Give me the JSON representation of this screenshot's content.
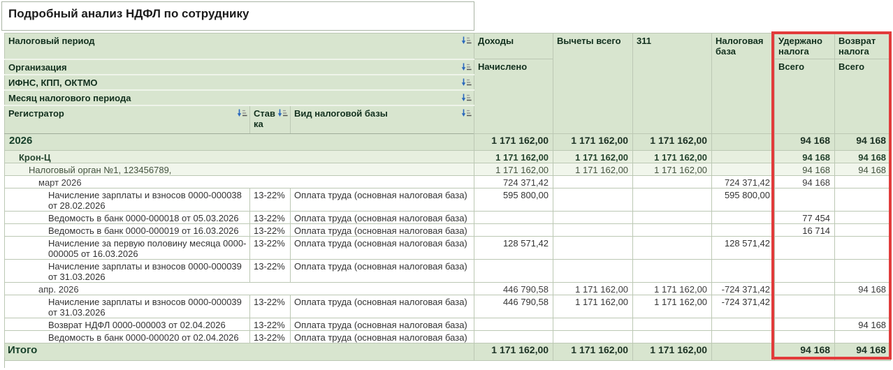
{
  "title": "Подробный анализ НДФЛ по сотруднику",
  "header": {
    "tax_period": "Налоговый период",
    "organization": "Организация",
    "ifns": "ИФНС, КПП, ОКТМО",
    "month": "Месяц налогового периода",
    "registrator": "Регистратор",
    "rate": "Ставка",
    "tax_base_kind": "Вид налоговой базы",
    "income": "Доходы",
    "income_sub": "Начислено",
    "deductions": "Вычеты всего",
    "code311": "311",
    "tax_base": "Налоговая база",
    "withheld": "Удержано налога",
    "withheld_sub": "Всего",
    "refund": "Возврат налога",
    "refund_sub": "Всего"
  },
  "colors": {
    "header_green": "#d8e5cf",
    "group_green": "#e7efdf",
    "subgroup_green": "#f1f6ec",
    "highlight_red": "#e23b3b",
    "negative_red": "#cc0000",
    "sort_icon_blue": "#2a68bd"
  },
  "rows": [
    {
      "type": "year",
      "label": "2026",
      "rate": "",
      "base_kind": "",
      "values": [
        "1 171 162,00",
        "1 171 162,00",
        "1 171 162,00",
        "",
        "94 168",
        "94 168"
      ]
    },
    {
      "type": "org",
      "label": "Крон-Ц",
      "rate": "",
      "base_kind": "",
      "values": [
        "1 171 162,00",
        "1 171 162,00",
        "1 171 162,00",
        "",
        "94 168",
        "94 168"
      ]
    },
    {
      "type": "ifns",
      "label": "Налоговый орган №1, 123456789,",
      "rate": "",
      "base_kind": "",
      "values": [
        "1 171 162,00",
        "1 171 162,00",
        "1 171 162,00",
        "",
        "94 168",
        "94 168"
      ]
    },
    {
      "type": "month",
      "label": "март 2026",
      "rate": "",
      "base_kind": "",
      "values": [
        "724 371,42",
        "",
        "",
        "724 371,42",
        "94 168",
        ""
      ]
    },
    {
      "type": "detail",
      "tall": true,
      "label": "Начисление зарплаты и взносов 0000-000038 от 28.02.2026",
      "rate": "13-22%",
      "base_kind": "Оплата труда (основная налоговая база)",
      "values": [
        "595 800,00",
        "",
        "",
        "595 800,00",
        "",
        ""
      ]
    },
    {
      "type": "detail",
      "label": "Ведомость в банк 0000-000018 от 05.03.2026",
      "rate": "13-22%",
      "base_kind": "Оплата труда (основная налоговая база)",
      "values": [
        "",
        "",
        "",
        "",
        "77 454",
        ""
      ]
    },
    {
      "type": "detail",
      "label": "Ведомость в банк 0000-000019 от 16.03.2026",
      "rate": "13-22%",
      "base_kind": "Оплата труда (основная налоговая база)",
      "values": [
        "",
        "",
        "",
        "",
        "16 714",
        ""
      ]
    },
    {
      "type": "detail",
      "tall": true,
      "label": "Начисление за первую половину месяца 0000-000005 от 16.03.2026",
      "rate": "13-22%",
      "base_kind": "Оплата труда (основная налоговая база)",
      "values": [
        "128 571,42",
        "",
        "",
        "128 571,42",
        "",
        ""
      ]
    },
    {
      "type": "detail",
      "tall": true,
      "label": "Начисление зарплаты и взносов 0000-000039 от 31.03.2026",
      "rate": "13-22%",
      "base_kind": "Оплата труда (основная налоговая база)",
      "values": [
        "",
        "",
        "",
        "",
        "",
        ""
      ]
    },
    {
      "type": "month",
      "label": "апр. 2026",
      "rate": "",
      "base_kind": "",
      "values": [
        "446 790,58",
        "1 171 162,00",
        "1 171 162,00",
        "-724 371,42",
        "",
        "94 168"
      ]
    },
    {
      "type": "detail",
      "tall": true,
      "label": "Начисление зарплаты и взносов 0000-000039 от 31.03.2026",
      "rate": "13-22%",
      "base_kind": "Оплата труда (основная налоговая база)",
      "values": [
        "446 790,58",
        "1 171 162,00",
        "1 171 162,00",
        "-724 371,42",
        "",
        ""
      ]
    },
    {
      "type": "detail",
      "label": "Возврат НДФЛ 0000-000003 от 02.04.2026",
      "rate": "13-22%",
      "base_kind": "Оплата труда (основная налоговая база)",
      "values": [
        "",
        "",
        "",
        "",
        "",
        "94 168"
      ]
    },
    {
      "type": "detail",
      "label": "Ведомость в банк 0000-000020 от 02.04.2026",
      "rate": "13-22%",
      "base_kind": "Оплата труда (основная налоговая база)",
      "values": [
        "",
        "",
        "",
        "",
        "",
        ""
      ]
    },
    {
      "type": "total",
      "label": "Итого",
      "rate": "",
      "base_kind": "",
      "values": [
        "1 171 162,00",
        "1 171 162,00",
        "1 171 162,00",
        "",
        "94 168",
        "94 168"
      ]
    }
  ]
}
